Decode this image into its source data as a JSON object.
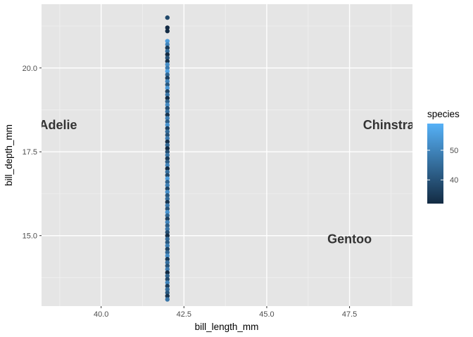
{
  "chart_data": {
    "type": "scatter",
    "title": "",
    "xlabel": "bill_length_mm",
    "ylabel": "bill_depth_mm",
    "xlim": [
      38.2,
      49.4
    ],
    "ylim": [
      12.9,
      21.9
    ],
    "x_ticks": [
      40.0,
      42.5,
      45.0,
      47.5
    ],
    "x_tick_labels": [
      "40.0",
      "42.5",
      "45.0",
      "47.5"
    ],
    "y_ticks": [
      15.0,
      17.5,
      20.0
    ],
    "y_tick_labels": [
      "15.0",
      "17.5",
      "20.0"
    ],
    "grid": true,
    "background": "#e5e5e5",
    "grid_color": "#ffffff",
    "point_x": 42.0,
    "points": [
      {
        "y": 21.5,
        "c": 38
      },
      {
        "y": 21.2,
        "c": 30
      },
      {
        "y": 21.1,
        "c": 32
      },
      {
        "y": 20.8,
        "c": 55
      },
      {
        "y": 20.7,
        "c": 50
      },
      {
        "y": 20.6,
        "c": 35
      },
      {
        "y": 20.5,
        "c": 45
      },
      {
        "y": 20.4,
        "c": 28
      },
      {
        "y": 20.3,
        "c": 40
      },
      {
        "y": 20.2,
        "c": 33
      },
      {
        "y": 20.1,
        "c": 52
      },
      {
        "y": 20.0,
        "c": 48
      },
      {
        "y": 19.9,
        "c": 56
      },
      {
        "y": 19.8,
        "c": 44
      },
      {
        "y": 19.7,
        "c": 36
      },
      {
        "y": 19.6,
        "c": 50
      },
      {
        "y": 19.5,
        "c": 41
      },
      {
        "y": 19.4,
        "c": 54
      },
      {
        "y": 19.3,
        "c": 37
      },
      {
        "y": 19.2,
        "c": 47
      },
      {
        "y": 19.1,
        "c": 30
      },
      {
        "y": 19.0,
        "c": 43
      },
      {
        "y": 18.9,
        "c": 51
      },
      {
        "y": 18.8,
        "c": 39
      },
      {
        "y": 18.7,
        "c": 46
      },
      {
        "y": 18.6,
        "c": 34
      },
      {
        "y": 18.5,
        "c": 49
      },
      {
        "y": 18.4,
        "c": 42
      },
      {
        "y": 18.3,
        "c": 53
      },
      {
        "y": 18.2,
        "c": 36
      },
      {
        "y": 18.1,
        "c": 45
      },
      {
        "y": 18.0,
        "c": 40
      },
      {
        "y": 17.9,
        "c": 48
      },
      {
        "y": 17.8,
        "c": 33
      },
      {
        "y": 17.7,
        "c": 44
      },
      {
        "y": 17.6,
        "c": 31
      },
      {
        "y": 17.5,
        "c": 39
      },
      {
        "y": 17.4,
        "c": 47
      },
      {
        "y": 17.3,
        "c": 35
      },
      {
        "y": 17.2,
        "c": 42
      },
      {
        "y": 17.1,
        "c": 50
      },
      {
        "y": 17.0,
        "c": 29
      },
      {
        "y": 16.9,
        "c": 46
      },
      {
        "y": 16.8,
        "c": 38
      },
      {
        "y": 16.7,
        "c": 55
      },
      {
        "y": 16.6,
        "c": 43
      },
      {
        "y": 16.5,
        "c": 49
      },
      {
        "y": 16.4,
        "c": 37
      },
      {
        "y": 16.3,
        "c": 52
      },
      {
        "y": 16.2,
        "c": 41
      },
      {
        "y": 16.1,
        "c": 45
      },
      {
        "y": 16.0,
        "c": 34
      },
      {
        "y": 15.9,
        "c": 48
      },
      {
        "y": 15.8,
        "c": 40
      },
      {
        "y": 15.7,
        "c": 53
      },
      {
        "y": 15.6,
        "c": 44
      },
      {
        "y": 15.5,
        "c": 36
      },
      {
        "y": 15.4,
        "c": 50
      },
      {
        "y": 15.3,
        "c": 42
      },
      {
        "y": 15.2,
        "c": 47
      },
      {
        "y": 15.1,
        "c": 39
      },
      {
        "y": 15.0,
        "c": 33
      },
      {
        "y": 14.9,
        "c": 45
      },
      {
        "y": 14.8,
        "c": 41
      },
      {
        "y": 14.7,
        "c": 49
      },
      {
        "y": 14.6,
        "c": 37
      },
      {
        "y": 14.5,
        "c": 44
      },
      {
        "y": 14.4,
        "c": 52
      },
      {
        "y": 14.3,
        "c": 35
      },
      {
        "y": 14.2,
        "c": 46
      },
      {
        "y": 14.1,
        "c": 40
      },
      {
        "y": 14.0,
        "c": 48
      },
      {
        "y": 13.9,
        "c": 31
      },
      {
        "y": 13.8,
        "c": 43
      },
      {
        "y": 13.7,
        "c": 38
      },
      {
        "y": 13.6,
        "c": 50
      },
      {
        "y": 13.5,
        "c": 36
      },
      {
        "y": 13.4,
        "c": 45
      },
      {
        "y": 13.3,
        "c": 41
      },
      {
        "y": 13.2,
        "c": 34
      },
      {
        "y": 13.1,
        "c": 47
      }
    ],
    "annotations": [
      {
        "label": "Adelie",
        "x": 38.7,
        "y": 18.3
      },
      {
        "label": "Chinstrap",
        "x": 48.8,
        "y": 18.3
      },
      {
        "label": "Gentoo",
        "x": 47.5,
        "y": 14.9
      }
    ],
    "legend": {
      "title": "species",
      "position": "right",
      "min": 32,
      "max": 59,
      "breaks": [
        40,
        50
      ],
      "break_labels": [
        "40",
        "50"
      ],
      "low_color": "#132b43",
      "high_color": "#56b1f7"
    }
  }
}
